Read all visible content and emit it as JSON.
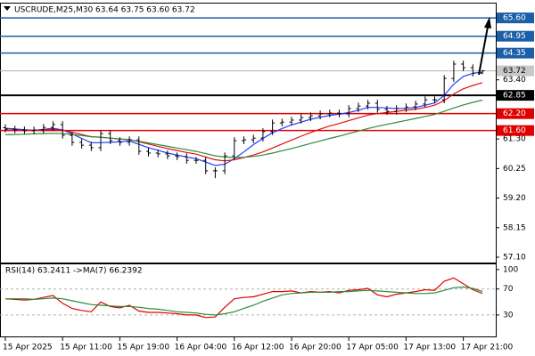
{
  "chart_data": [
    {
      "type": "ohlc",
      "title": "USCRUDE,M25,M30  63.64 63.75 63.60 63.72",
      "categories": [
        "15 Apr 2025",
        null,
        null,
        null,
        null,
        null,
        "15 Apr 11:00",
        null,
        null,
        null,
        null,
        null,
        "15 Apr 19:00",
        null,
        null,
        null,
        null,
        null,
        "16 Apr 04:00",
        null,
        null,
        null,
        null,
        null,
        "16 Apr 12:00",
        null,
        null,
        null,
        null,
        null,
        "16 Apr 20:00",
        null,
        null,
        null,
        null,
        null,
        "17 Apr 05:00",
        null,
        null,
        null,
        null,
        null,
        "17 Apr 13:00",
        null,
        null,
        null,
        null,
        null,
        "17 Apr 21:00",
        null,
        null
      ],
      "open": [
        61.7,
        61.65,
        61.62,
        61.59,
        61.62,
        61.71,
        61.81,
        61.43,
        61.18,
        61.08,
        60.99,
        61.49,
        61.24,
        61.18,
        61.27,
        60.86,
        60.8,
        60.77,
        60.7,
        60.67,
        60.54,
        60.54,
        60.17,
        60.17,
        60.7,
        61.24,
        61.27,
        61.33,
        61.56,
        61.87,
        61.9,
        61.97,
        62.06,
        62.12,
        62.19,
        62.22,
        62.19,
        62.38,
        62.47,
        62.57,
        62.35,
        62.28,
        62.38,
        62.44,
        62.54,
        62.69,
        62.69,
        63.45,
        63.96,
        63.83,
        63.64
      ],
      "high": [
        61.82,
        61.77,
        61.74,
        61.74,
        61.83,
        61.93,
        61.93,
        61.55,
        61.3,
        61.2,
        61.61,
        61.61,
        61.36,
        61.39,
        61.39,
        60.98,
        60.92,
        60.89,
        60.82,
        60.79,
        60.66,
        60.66,
        60.29,
        60.82,
        61.36,
        61.39,
        61.45,
        61.68,
        61.99,
        62.02,
        62.09,
        62.18,
        62.24,
        62.31,
        62.34,
        62.34,
        62.5,
        62.59,
        62.69,
        62.69,
        62.47,
        62.5,
        62.56,
        62.66,
        62.81,
        62.81,
        63.57,
        64.08,
        64.08,
        63.95,
        63.75
      ],
      "low": [
        61.53,
        61.5,
        61.47,
        61.47,
        61.5,
        61.59,
        61.31,
        61.06,
        60.96,
        60.87,
        60.87,
        61.12,
        61.06,
        61.06,
        60.74,
        60.68,
        60.65,
        60.58,
        60.55,
        60.42,
        60.42,
        60.05,
        59.91,
        60.05,
        60.58,
        61.12,
        61.15,
        61.21,
        61.44,
        61.75,
        61.78,
        61.85,
        61.94,
        62.0,
        62.07,
        62.07,
        62.07,
        62.26,
        62.35,
        62.23,
        62.16,
        62.16,
        62.26,
        62.32,
        62.42,
        62.57,
        62.57,
        63.33,
        63.71,
        63.52,
        63.6
      ],
      "close": [
        61.65,
        61.62,
        61.59,
        61.62,
        61.71,
        61.81,
        61.43,
        61.18,
        61.08,
        60.99,
        61.49,
        61.24,
        61.18,
        61.27,
        60.86,
        60.8,
        60.77,
        60.7,
        60.67,
        60.54,
        60.54,
        60.17,
        60.17,
        60.7,
        61.24,
        61.27,
        61.33,
        61.56,
        61.87,
        61.9,
        61.97,
        62.06,
        62.12,
        62.19,
        62.22,
        62.19,
        62.38,
        62.47,
        62.57,
        62.35,
        62.28,
        62.38,
        62.44,
        62.54,
        62.69,
        62.69,
        63.45,
        63.96,
        63.83,
        63.64,
        63.72
      ],
      "color": "#000000",
      "lines": [
        {
          "color": "#1e3cff",
          "values": [
            61.68,
            61.66,
            61.63,
            61.61,
            61.64,
            61.68,
            61.62,
            61.48,
            61.32,
            61.17,
            61.17,
            61.18,
            61.2,
            61.23,
            61.11,
            60.99,
            60.9,
            60.8,
            60.73,
            60.66,
            60.6,
            60.48,
            60.36,
            60.4,
            60.6,
            60.84,
            61.1,
            61.32,
            61.52,
            61.67,
            61.8,
            61.9,
            62.0,
            62.07,
            62.14,
            62.18,
            62.24,
            62.32,
            62.42,
            62.42,
            62.4,
            62.38,
            62.39,
            62.42,
            62.5,
            62.58,
            62.85,
            63.25,
            63.52,
            63.63,
            63.68
          ]
        },
        {
          "color": "#e01010",
          "values": [
            61.62,
            61.62,
            61.61,
            61.61,
            61.62,
            61.64,
            61.61,
            61.54,
            61.46,
            61.38,
            61.36,
            61.33,
            61.3,
            61.28,
            61.2,
            61.12,
            61.04,
            60.96,
            60.89,
            60.82,
            60.76,
            60.66,
            60.56,
            60.52,
            60.56,
            60.64,
            60.73,
            60.84,
            60.98,
            61.12,
            61.26,
            61.4,
            61.53,
            61.65,
            61.76,
            61.85,
            61.95,
            62.05,
            62.15,
            62.2,
            62.24,
            62.28,
            62.32,
            62.36,
            62.42,
            62.5,
            62.66,
            62.9,
            63.08,
            63.2,
            63.3
          ]
        },
        {
          "color": "#2e8b3a",
          "values": [
            61.45,
            61.46,
            61.47,
            61.48,
            61.49,
            61.5,
            61.49,
            61.46,
            61.42,
            61.38,
            61.36,
            61.33,
            61.3,
            61.27,
            61.22,
            61.16,
            61.1,
            61.04,
            60.98,
            60.92,
            60.86,
            60.78,
            60.7,
            60.66,
            60.64,
            60.65,
            60.68,
            60.73,
            60.8,
            60.88,
            60.96,
            61.05,
            61.14,
            61.23,
            61.32,
            61.4,
            61.49,
            61.58,
            61.67,
            61.75,
            61.82,
            61.89,
            61.96,
            62.03,
            62.1,
            62.17,
            62.28,
            62.4,
            62.51,
            62.6,
            62.68
          ]
        }
      ],
      "ylim": [
        56.91,
        66.11
      ],
      "yticks": [
        {
          "value": 63.4,
          "label": "63.40"
        },
        {
          "value": 61.3,
          "label": "61.30"
        },
        {
          "value": 60.25,
          "label": "60.25"
        },
        {
          "value": 59.2,
          "label": "59.20"
        },
        {
          "value": 58.15,
          "label": "58.15"
        },
        {
          "value": 57.1,
          "label": "57.10"
        }
      ],
      "levels": [
        {
          "value": 65.6,
          "label": "65.60",
          "color": "#1c5fa8"
        },
        {
          "value": 64.95,
          "label": "64.95",
          "color": "#1c5fa8"
        },
        {
          "value": 64.35,
          "label": "64.35",
          "color": "#1c5fa8"
        },
        {
          "value": 62.85,
          "label": "62.85",
          "color": "#000000"
        },
        {
          "value": 62.2,
          "label": "62.20",
          "color": "#e00000"
        },
        {
          "value": 61.6,
          "label": "61.60",
          "color": "#e00000"
        }
      ],
      "current": {
        "value": 63.72,
        "label": "63.72",
        "color": "#c8c8c8"
      }
    },
    {
      "type": "rsi",
      "title": "RSI(14) 63.2411  ->MA(7) 66.2392",
      "series": [
        {
          "color": "#e00000",
          "values": [
            55,
            54,
            53,
            54,
            57,
            60,
            48,
            40,
            37,
            35,
            50,
            43,
            41,
            45,
            36,
            34,
            34,
            33,
            32,
            30,
            30,
            26,
            27,
            42,
            55,
            57,
            58,
            62,
            66,
            66,
            67,
            64,
            66,
            65,
            66,
            64,
            68,
            69,
            71,
            61,
            58,
            62,
            64,
            66,
            69,
            68,
            82,
            87,
            78,
            69,
            63.2411
          ]
        },
        {
          "color": "#2e8b3a",
          "values": [
            55,
            55,
            55,
            54,
            55,
            56,
            55,
            52,
            49,
            46,
            45,
            44,
            43,
            43,
            42,
            40,
            39,
            37,
            35,
            34,
            33,
            31,
            30,
            32,
            35,
            40,
            45,
            51,
            56,
            61,
            63,
            64,
            65,
            65,
            65,
            66,
            66,
            67,
            68,
            67,
            66,
            65,
            64,
            63,
            63,
            64,
            68,
            72,
            73,
            71,
            66.2392
          ]
        }
      ],
      "ylim": [
        -3,
        108
      ],
      "yticks": [
        100,
        70,
        30
      ],
      "levels": [
        70,
        30
      ]
    }
  ]
}
